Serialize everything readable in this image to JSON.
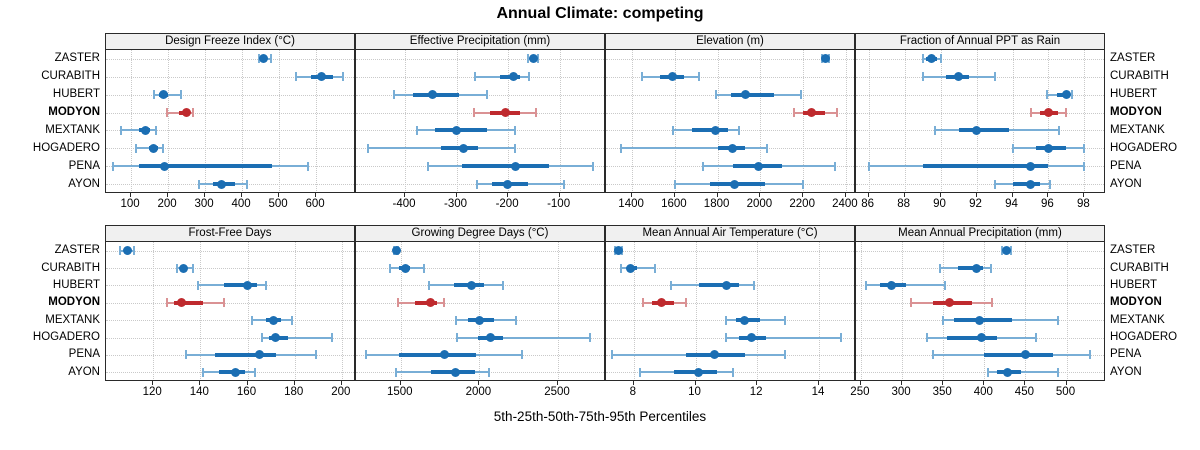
{
  "title": "Annual Climate: competing",
  "caption": "5th-25th-50th-75th-95th Percentiles",
  "sites": [
    "ZASTER",
    "CURABITH",
    "HUBERT",
    "MODYON",
    "MEXTANK",
    "HOGADERO",
    "PENA",
    "AYON"
  ],
  "highlight_site": "MODYON",
  "percentile_labels": [
    "5th",
    "25th",
    "50th",
    "75th",
    "95th"
  ],
  "colors": {
    "series_blue": "#1b6eb3",
    "series_blue_light": "#79aed6",
    "highlight_red": "#bf2a2e",
    "highlight_red_light": "#da9294",
    "strip_bg": "#f0f0f0",
    "panel_border": "#2a2a2a",
    "grid": "#c9c9c9"
  },
  "chart_data": {
    "type": "scatter",
    "subtype": "dot-plot-with-percentile-intervals",
    "title": "Annual Climate: competing",
    "xlabel": "5th-25th-50th-75th-95th Percentiles",
    "legend_position": "none",
    "grid": "dotted",
    "categories": [
      "ZASTER",
      "CURABITH",
      "HUBERT",
      "MODYON",
      "MEXTANK",
      "HOGADERO",
      "PENA",
      "AYON"
    ],
    "highlight_category": "MODYON",
    "panels": [
      {
        "label": "Design Freeze Index (°C)",
        "grid_row": 0,
        "grid_col": 0,
        "xlim": [
          32,
          708
        ],
        "ticks": [
          100,
          200,
          300,
          400,
          500,
          600
        ],
        "values": [
          [
            445,
            452,
            458,
            465,
            477
          ],
          [
            545,
            585,
            615,
            645,
            672
          ],
          [
            162,
            175,
            186,
            200,
            235
          ],
          [
            196,
            228,
            250,
            258,
            266
          ],
          [
            72,
            120,
            140,
            152,
            166
          ],
          [
            112,
            147,
            161,
            172,
            186
          ],
          [
            50,
            120,
            190,
            480,
            578
          ],
          [
            282,
            320,
            345,
            382,
            412
          ]
        ]
      },
      {
        "label": "Effective Precipitation (mm)",
        "grid_row": 0,
        "grid_col": 1,
        "xlim": [
          -495,
          -10
        ],
        "ticks": [
          -400,
          -300,
          -200,
          -100
        ],
        "values": [
          [
            -162,
            -156,
            -151,
            -147,
            -142
          ],
          [
            -264,
            -215,
            -190,
            -176,
            -160
          ],
          [
            -421,
            -385,
            -346,
            -296,
            -241
          ],
          [
            -266,
            -236,
            -206,
            -176,
            -146
          ],
          [
            -376,
            -341,
            -300,
            -241,
            -186
          ],
          [
            -471,
            -331,
            -286,
            -259,
            -186
          ],
          [
            -356,
            -290,
            -185,
            -120,
            -36
          ],
          [
            -261,
            -231,
            -201,
            -161,
            -91
          ]
        ]
      },
      {
        "label": "Elevation (m)",
        "grid_row": 0,
        "grid_col": 2,
        "xlim": [
          1278,
          2447
        ],
        "ticks": [
          1400,
          1600,
          1800,
          2000,
          2200,
          2400
        ],
        "values": [
          [
            2290,
            2298,
            2306,
            2313,
            2321
          ],
          [
            1448,
            1530,
            1590,
            1642,
            1712
          ],
          [
            1790,
            1862,
            1932,
            2062,
            2188
          ],
          [
            2158,
            2200,
            2240,
            2300,
            2358
          ],
          [
            1590,
            1680,
            1788,
            1850,
            1902
          ],
          [
            1350,
            1800,
            1868,
            1930,
            2030
          ],
          [
            1730,
            1870,
            1990,
            2102,
            2348
          ],
          [
            1600,
            1762,
            1880,
            2020,
            2200
          ]
        ]
      },
      {
        "label": "Fraction of Annual PPT as Rain",
        "grid_row": 0,
        "grid_col": 3,
        "xlim": [
          85.3,
          99.2
        ],
        "ticks": [
          86,
          88,
          90,
          92,
          94,
          96,
          98
        ],
        "values": [
          [
            89.0,
            89.2,
            89.5,
            89.8,
            90.0
          ],
          [
            89.0,
            90.3,
            91.0,
            91.6,
            93.0
          ],
          [
            95.9,
            96.5,
            97.0,
            97.1,
            97.3
          ],
          [
            95.0,
            95.5,
            96.0,
            96.5,
            97.0
          ],
          [
            89.7,
            91.0,
            92.0,
            93.8,
            96.6
          ],
          [
            94.0,
            95.3,
            96.0,
            97.0,
            98.0
          ],
          [
            86.0,
            89.0,
            95.0,
            96.0,
            98.0
          ],
          [
            93.0,
            94.0,
            95.0,
            95.5,
            96.1
          ]
        ]
      },
      {
        "label": "Frost-Free Days",
        "grid_row": 1,
        "grid_col": 0,
        "xlim": [
          100,
          206
        ],
        "ticks": [
          120,
          140,
          160,
          180,
          200
        ],
        "values": [
          [
            106,
            107.5,
            109,
            110.5,
            112
          ],
          [
            130,
            132,
            133,
            134.5,
            137
          ],
          [
            139,
            150,
            160,
            164,
            168
          ],
          [
            126,
            129,
            132,
            141,
            150
          ],
          [
            162,
            168,
            171,
            174,
            179
          ],
          [
            166,
            169,
            172,
            177,
            196
          ],
          [
            134,
            146,
            165,
            172,
            189
          ],
          [
            141,
            148,
            155,
            159,
            163
          ]
        ]
      },
      {
        "label": "Growing Degree Days (°C)",
        "grid_row": 1,
        "grid_col": 1,
        "xlim": [
          1215,
          2805
        ],
        "ticks": [
          1500,
          2000,
          2500
        ],
        "values": [
          [
            1458,
            1464,
            1470,
            1477,
            1484
          ],
          [
            1432,
            1490,
            1528,
            1560,
            1650
          ],
          [
            1680,
            1840,
            1950,
            2030,
            2150
          ],
          [
            1482,
            1590,
            1688,
            1732,
            1772
          ],
          [
            1850,
            1930,
            2000,
            2090,
            2230
          ],
          [
            1860,
            1990,
            2070,
            2150,
            2700
          ],
          [
            1280,
            1490,
            1780,
            1980,
            2270
          ],
          [
            1470,
            1690,
            1850,
            1970,
            2060
          ]
        ]
      },
      {
        "label": "Mean Annual Air Temperature (°C)",
        "grid_row": 1,
        "grid_col": 2,
        "xlim": [
          7.1,
          15.2
        ],
        "ticks": [
          8,
          10,
          12,
          14
        ],
        "values": [
          [
            7.38,
            7.44,
            7.5,
            7.56,
            7.62
          ],
          [
            7.6,
            7.8,
            7.9,
            8.1,
            8.7
          ],
          [
            9.2,
            10.1,
            11.0,
            11.4,
            11.9
          ],
          [
            8.3,
            8.6,
            8.9,
            9.3,
            9.7
          ],
          [
            11.0,
            11.3,
            11.6,
            12.1,
            12.9
          ],
          [
            11.0,
            11.4,
            11.8,
            12.3,
            14.7
          ],
          [
            7.3,
            9.7,
            10.6,
            11.6,
            12.9
          ],
          [
            8.2,
            9.3,
            10.1,
            10.7,
            11.2
          ]
        ]
      },
      {
        "label": "Mean Annual Precipitation (mm)",
        "grid_row": 1,
        "grid_col": 3,
        "xlim": [
          244,
          548
        ],
        "ticks": [
          250,
          300,
          350,
          400,
          450,
          500
        ],
        "values": [
          [
            422,
            424,
            427,
            430,
            432
          ],
          [
            346,
            368,
            390,
            398,
            408
          ],
          [
            256,
            273,
            287,
            305,
            352
          ],
          [
            311,
            338,
            358,
            385,
            409
          ],
          [
            350,
            363,
            394,
            434,
            490
          ],
          [
            330,
            355,
            396,
            415,
            463
          ],
          [
            338,
            400,
            450,
            483,
            528
          ],
          [
            405,
            415,
            428,
            445,
            490
          ]
        ]
      }
    ]
  }
}
